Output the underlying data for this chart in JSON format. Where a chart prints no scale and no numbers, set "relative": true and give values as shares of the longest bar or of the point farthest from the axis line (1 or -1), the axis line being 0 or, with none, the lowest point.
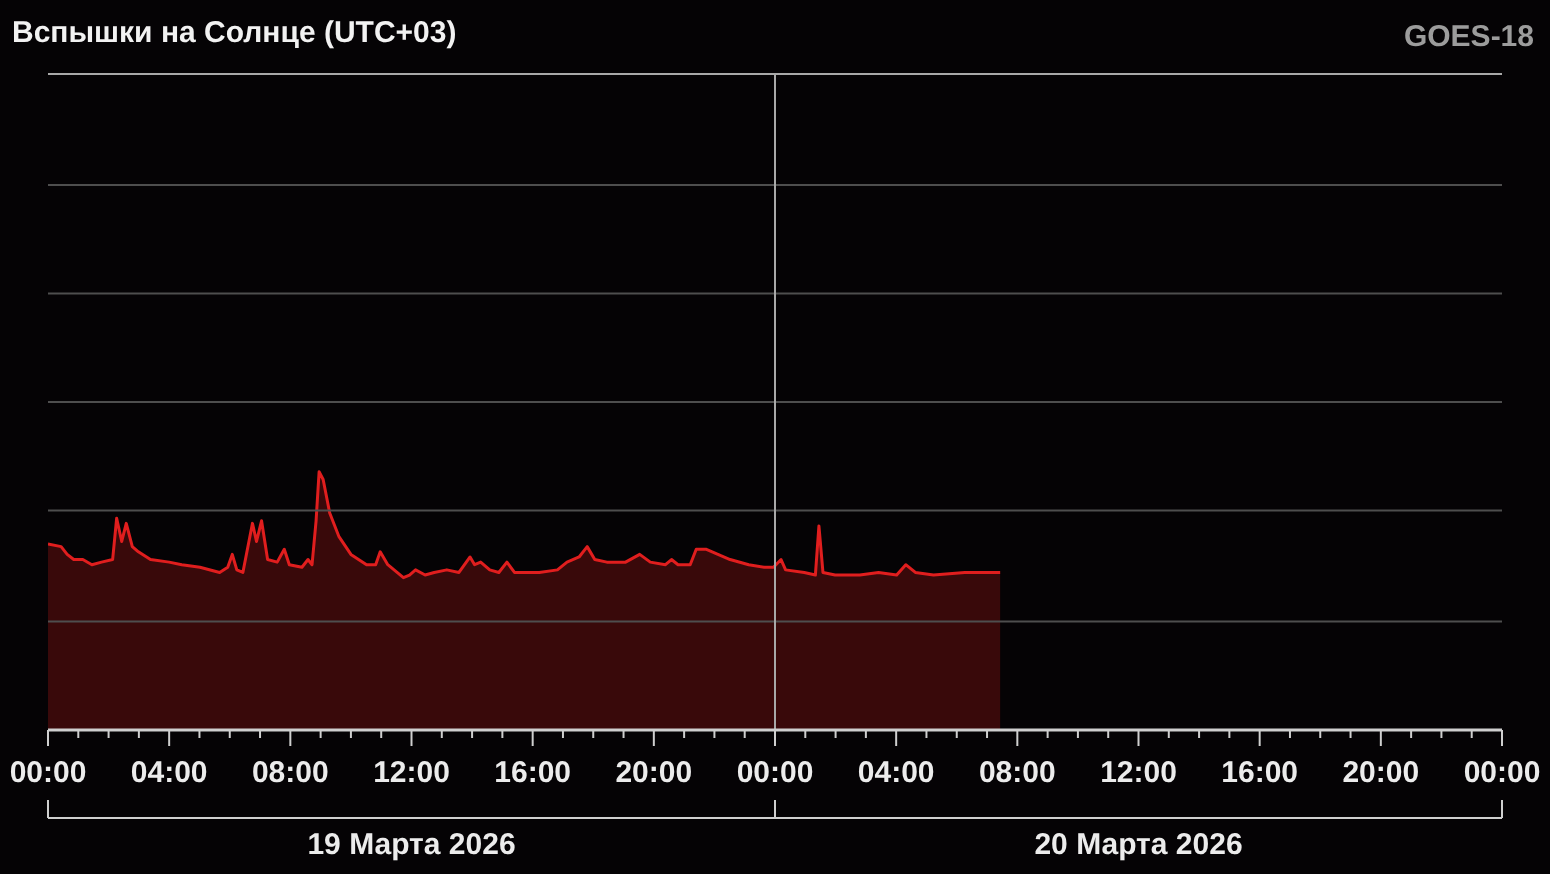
{
  "chart_data": {
    "type": "area",
    "title": "Вспышки на Солнце (UTC+03)",
    "subtitle": "GOES-18",
    "relative": true,
    "color": "#e01e1e",
    "x": [
      "2026-03-19T00:00",
      "2026-03-19T00:26",
      "2026-03-19T00:38",
      "2026-03-19T00:51",
      "2026-03-19T01:09",
      "2026-03-19T01:27",
      "2026-03-19T01:46",
      "2026-03-19T02:08",
      "2026-03-19T02:16",
      "2026-03-19T02:26",
      "2026-03-19T02:35",
      "2026-03-19T02:47",
      "2026-03-19T02:59",
      "2026-03-19T03:23",
      "2026-03-19T04:00",
      "2026-03-19T04:25",
      "2026-03-19T05:01",
      "2026-03-19T05:40",
      "2026-03-19T05:56",
      "2026-03-19T06:05",
      "2026-03-19T06:14",
      "2026-03-19T06:26",
      "2026-03-19T06:45",
      "2026-03-19T06:53",
      "2026-03-19T07:03",
      "2026-03-19T07:15",
      "2026-03-19T07:34",
      "2026-03-19T07:48",
      "2026-03-19T07:58",
      "2026-03-19T08:23",
      "2026-03-19T08:35",
      "2026-03-19T08:43",
      "2026-03-19T08:51",
      "2026-03-19T08:57",
      "2026-03-19T09:05",
      "2026-03-19T09:18",
      "2026-03-19T09:36",
      "2026-03-19T10:00",
      "2026-03-19T10:31",
      "2026-03-19T10:49",
      "2026-03-19T10:58",
      "2026-03-19T11:13",
      "2026-03-19T11:44",
      "2026-03-19T11:56",
      "2026-03-19T12:08",
      "2026-03-19T12:27",
      "2026-03-19T12:45",
      "2026-03-19T13:10",
      "2026-03-19T13:34",
      "2026-03-19T13:56",
      "2026-03-19T14:05",
      "2026-03-19T14:17",
      "2026-03-19T14:35",
      "2026-03-19T14:53",
      "2026-03-19T15:09",
      "2026-03-19T15:24",
      "2026-03-19T15:48",
      "2026-03-19T16:13",
      "2026-03-19T16:49",
      "2026-03-19T17:08",
      "2026-03-19T17:32",
      "2026-03-19T17:48",
      "2026-03-19T18:03",
      "2026-03-19T18:27",
      "2026-03-19T19:04",
      "2026-03-19T19:32",
      "2026-03-19T19:53",
      "2026-03-19T20:23",
      "2026-03-19T20:35",
      "2026-03-19T20:48",
      "2026-03-19T21:12",
      "2026-03-19T21:24",
      "2026-03-19T21:43",
      "2026-03-19T22:07",
      "2026-03-19T22:31",
      "2026-03-19T23:08",
      "2026-03-19T23:39",
      "2026-03-19T23:57",
      "2026-03-20T00:12",
      "2026-03-20T00:21",
      "2026-03-20T00:58",
      "2026-03-20T01:20",
      "2026-03-20T01:27",
      "2026-03-20T01:35",
      "2026-03-20T01:59",
      "2026-03-20T02:48",
      "2026-03-20T03:25",
      "2026-03-20T04:01",
      "2026-03-20T04:19",
      "2026-03-20T04:38",
      "2026-03-20T05:14",
      "2026-03-20T06:16",
      "2026-03-20T07:04",
      "2026-03-20T07:26"
    ],
    "values": [
      0.72,
      0.71,
      0.68,
      0.66,
      0.66,
      0.64,
      0.65,
      0.66,
      0.82,
      0.73,
      0.8,
      0.71,
      0.69,
      0.66,
      0.65,
      0.64,
      0.63,
      0.61,
      0.63,
      0.68,
      0.62,
      0.61,
      0.8,
      0.73,
      0.81,
      0.66,
      0.65,
      0.7,
      0.64,
      0.63,
      0.66,
      0.64,
      0.81,
      1.0,
      0.97,
      0.84,
      0.75,
      0.68,
      0.64,
      0.64,
      0.69,
      0.64,
      0.59,
      0.6,
      0.62,
      0.6,
      0.61,
      0.62,
      0.61,
      0.67,
      0.64,
      0.65,
      0.62,
      0.61,
      0.65,
      0.61,
      0.61,
      0.61,
      0.62,
      0.65,
      0.67,
      0.71,
      0.66,
      0.65,
      0.65,
      0.68,
      0.65,
      0.64,
      0.66,
      0.64,
      0.64,
      0.7,
      0.7,
      0.68,
      0.66,
      0.64,
      0.63,
      0.63,
      0.66,
      0.62,
      0.61,
      0.6,
      0.79,
      0.61,
      0.6,
      0.6,
      0.61,
      0.6,
      0.64,
      0.61,
      0.6,
      0.61,
      0.61,
      0.61
    ],
    "xlim": [
      "2026-03-19T00:00",
      "2026-03-21T00:00"
    ],
    "xticks": [
      {
        "value": "2026-03-19T00:00",
        "label": "00:00"
      },
      {
        "value": "2026-03-19T01:00",
        "label": null
      },
      {
        "value": "2026-03-19T02:00",
        "label": null
      },
      {
        "value": "2026-03-19T03:00",
        "label": null
      },
      {
        "value": "2026-03-19T04:00",
        "label": "04:00"
      },
      {
        "value": "2026-03-19T05:00",
        "label": null
      },
      {
        "value": "2026-03-19T06:00",
        "label": null
      },
      {
        "value": "2026-03-19T07:00",
        "label": null
      },
      {
        "value": "2026-03-19T08:00",
        "label": "08:00"
      },
      {
        "value": "2026-03-19T09:00",
        "label": null
      },
      {
        "value": "2026-03-19T10:00",
        "label": null
      },
      {
        "value": "2026-03-19T11:00",
        "label": null
      },
      {
        "value": "2026-03-19T12:00",
        "label": "12:00"
      },
      {
        "value": "2026-03-19T13:00",
        "label": null
      },
      {
        "value": "2026-03-19T14:00",
        "label": null
      },
      {
        "value": "2026-03-19T15:00",
        "label": null
      },
      {
        "value": "2026-03-19T16:00",
        "label": "16:00"
      },
      {
        "value": "2026-03-19T17:00",
        "label": null
      },
      {
        "value": "2026-03-19T18:00",
        "label": null
      },
      {
        "value": "2026-03-19T19:00",
        "label": null
      },
      {
        "value": "2026-03-19T20:00",
        "label": "20:00"
      },
      {
        "value": "2026-03-19T21:00",
        "label": null
      },
      {
        "value": "2026-03-19T22:00",
        "label": null
      },
      {
        "value": "2026-03-19T23:00",
        "label": null
      },
      {
        "value": "2026-03-20T00:00",
        "label": "00:00"
      },
      {
        "value": "2026-03-20T01:00",
        "label": null
      },
      {
        "value": "2026-03-20T02:00",
        "label": null
      },
      {
        "value": "2026-03-20T03:00",
        "label": null
      },
      {
        "value": "2026-03-20T04:00",
        "label": "04:00"
      },
      {
        "value": "2026-03-20T05:00",
        "label": null
      },
      {
        "value": "2026-03-20T06:00",
        "label": null
      },
      {
        "value": "2026-03-20T07:00",
        "label": null
      },
      {
        "value": "2026-03-20T08:00",
        "label": "08:00"
      },
      {
        "value": "2026-03-20T09:00",
        "label": null
      },
      {
        "value": "2026-03-20T10:00",
        "label": null
      },
      {
        "value": "2026-03-20T11:00",
        "label": null
      },
      {
        "value": "2026-03-20T12:00",
        "label": "12:00"
      },
      {
        "value": "2026-03-20T13:00",
        "label": null
      },
      {
        "value": "2026-03-20T14:00",
        "label": null
      },
      {
        "value": "2026-03-20T15:00",
        "label": null
      },
      {
        "value": "2026-03-20T16:00",
        "label": "16:00"
      },
      {
        "value": "2026-03-20T17:00",
        "label": null
      },
      {
        "value": "2026-03-20T18:00",
        "label": null
      },
      {
        "value": "2026-03-20T19:00",
        "label": null
      },
      {
        "value": "2026-03-20T20:00",
        "label": "20:00"
      },
      {
        "value": "2026-03-20T21:00",
        "label": null
      },
      {
        "value": "2026-03-20T22:00",
        "label": null
      },
      {
        "value": "2026-03-20T23:00",
        "label": null
      },
      {
        "value": "2026-03-21T00:00",
        "label": "00:00"
      }
    ],
    "x2lim": [
      "2026-03-19T00:00",
      "2026-03-21T00:00"
    ],
    "x2ticks": [
      {
        "value": "2026-03-19T00:00",
        "label": null
      },
      {
        "value": "2026-03-19T12:00",
        "label": "19 Марта 2026"
      },
      {
        "value": "2026-03-20T00:00",
        "label": null
      },
      {
        "value": "2026-03-20T12:00",
        "label": "20 Марта 2026"
      },
      {
        "value": "2026-03-21T00:00",
        "label": null
      }
    ],
    "ref_lines": [
      {
        "axis": "y",
        "value": 0.42,
        "color": "#4e4e4e"
      },
      {
        "axis": "y",
        "value": 0.85,
        "color": "#4e4e4e"
      },
      {
        "axis": "y",
        "value": 1.27,
        "color": "#4e4e4e"
      },
      {
        "axis": "y",
        "value": 1.69,
        "color": "#4e4e4e"
      },
      {
        "axis": "y",
        "value": 2.11,
        "color": "#4e4e4e"
      },
      {
        "axis": "y",
        "value": 2.54,
        "color": "#a8a8a8"
      },
      {
        "axis": "x",
        "value": "2026-03-20T00:00",
        "color": "#a8a8a8"
      }
    ]
  }
}
